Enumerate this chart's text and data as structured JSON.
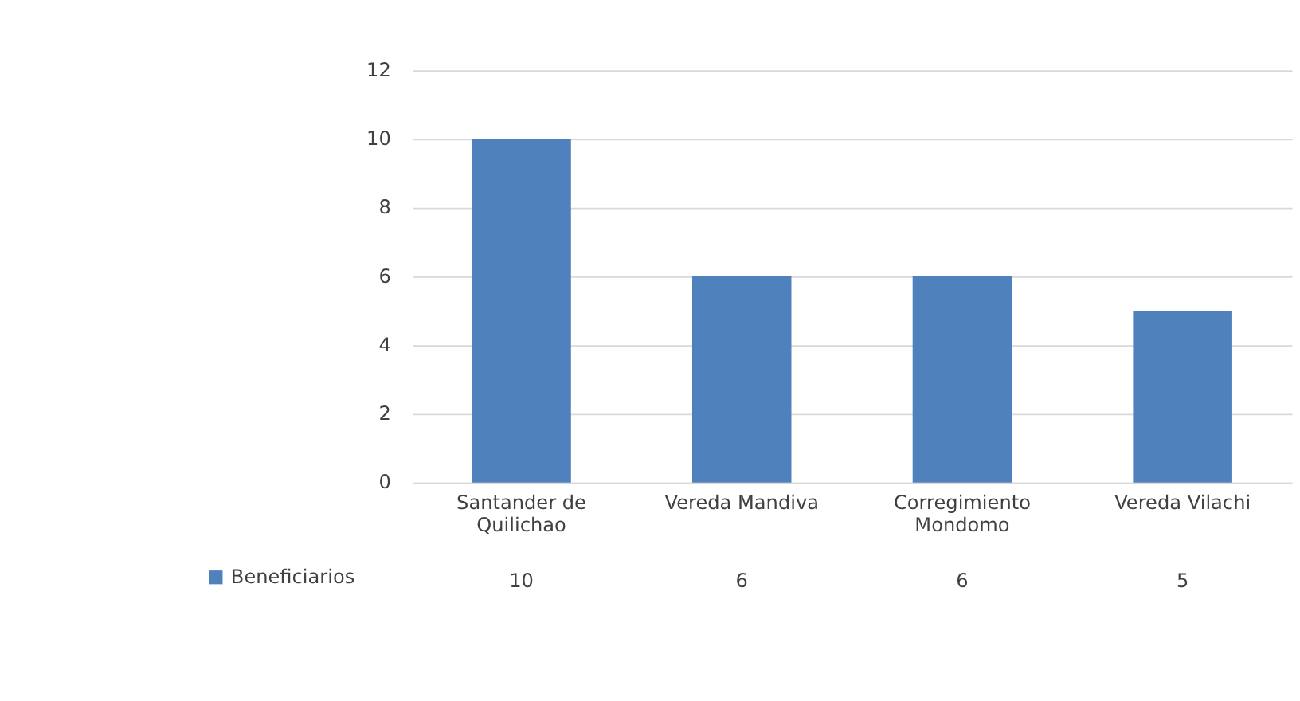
{
  "chart_data": {
    "type": "bar",
    "categories": [
      "Santander de Quilichao",
      "Vereda Mandiva",
      "Corregimiento Mondomo",
      "Vereda Vilachi"
    ],
    "series": [
      {
        "name": "Beneficiarios",
        "color": "#4f81bd",
        "values": [
          10,
          6,
          6,
          5
        ]
      }
    ],
    "ylim": [
      0,
      12
    ],
    "yticks": [
      0,
      2,
      4,
      6,
      8,
      10,
      12
    ],
    "grid": "y",
    "legend": "bottom left",
    "data_labels": true
  }
}
